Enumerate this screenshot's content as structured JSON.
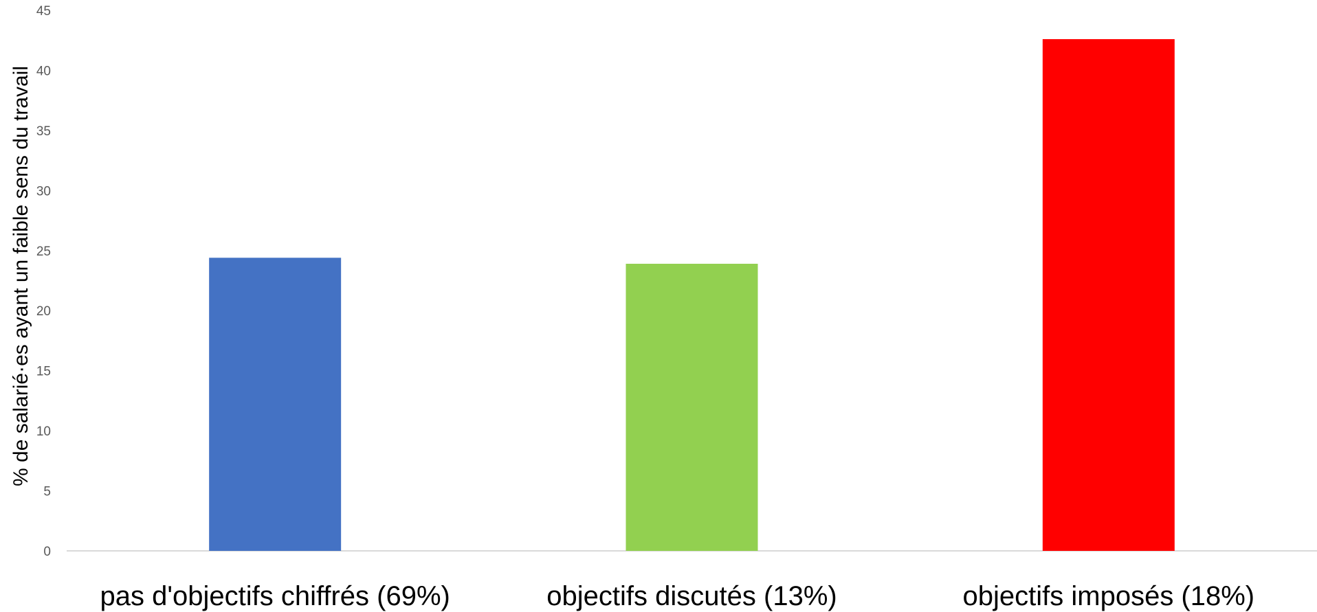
{
  "chart_data": {
    "type": "bar",
    "categories": [
      "pas d'objectifs chiffrés (69%)",
      "objectifs discutés (13%)",
      "objectifs imposés (18%)"
    ],
    "values": [
      24.4,
      23.9,
      42.6
    ],
    "colors": [
      "#4472C4",
      "#92D050",
      "#FF0000"
    ],
    "title": "",
    "xlabel": "",
    "ylabel": "% de salarié·es ayant un faible sens du travail",
    "ylim": [
      0,
      45
    ],
    "yticks": [
      "0",
      "5",
      "10",
      "15",
      "20",
      "25",
      "30",
      "35",
      "40",
      "45"
    ],
    "grid": false,
    "legend": "none"
  }
}
